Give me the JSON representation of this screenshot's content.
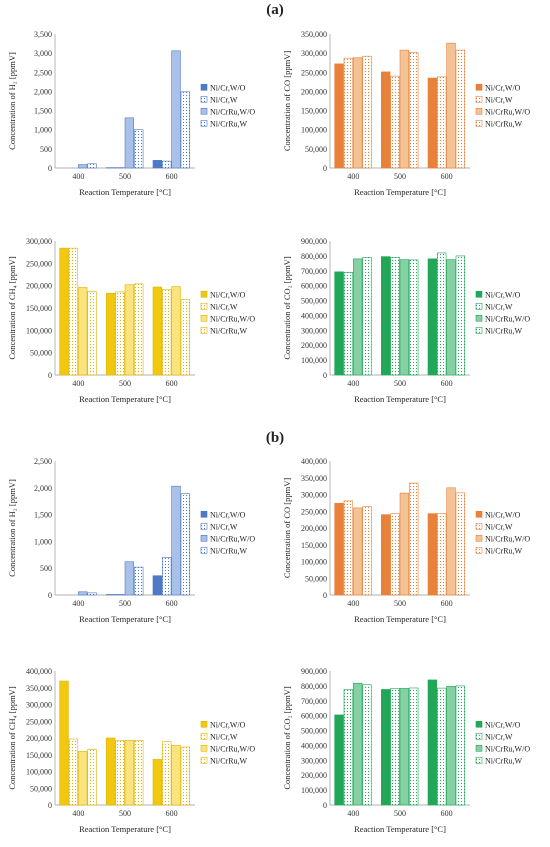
{
  "panels": [
    {
      "label": "(a)"
    },
    {
      "label": "(b)"
    }
  ],
  "charts": [
    {
      "id": "a-h2",
      "panel": "a",
      "type": "bar",
      "x": 5,
      "y": 28,
      "w": 265,
      "h": 180,
      "ylabel": "Concentration of H₂ [ppmV]",
      "xlabel": "Reaction Temperature [°C]",
      "ylim": [
        0,
        3500
      ],
      "yticks": [
        0,
        500,
        1000,
        1500,
        2000,
        2500,
        3000,
        3500
      ],
      "categories": [
        "400",
        "500",
        "600"
      ],
      "palette": "blue",
      "series": [
        {
          "name": "Ni/Cr,W/O",
          "values": [
            0,
            10,
            200
          ]
        },
        {
          "name": "Ni/Cr,W",
          "values": [
            0,
            10,
            180
          ]
        },
        {
          "name": "Ni/CrRu,W/O",
          "values": [
            90,
            1310,
            3060
          ]
        },
        {
          "name": "Ni/CrRu,W",
          "values": [
            110,
            1000,
            1990
          ]
        }
      ]
    },
    {
      "id": "a-co",
      "panel": "a",
      "type": "bar",
      "x": 280,
      "y": 28,
      "w": 265,
      "h": 180,
      "ylabel": "Concentration of CO [ppmV]",
      "xlabel": "Reaction Temperature [°C]",
      "ylim": [
        0,
        350000
      ],
      "yticks": [
        0,
        50000,
        100000,
        150000,
        200000,
        250000,
        300000,
        350000
      ],
      "categories": [
        "400",
        "500",
        "600"
      ],
      "palette": "orange",
      "series": [
        {
          "name": "Ni/Cr,W/O",
          "values": [
            272000,
            251000,
            235000
          ]
        },
        {
          "name": "Ni/Cr,W",
          "values": [
            287000,
            240000,
            238000
          ]
        },
        {
          "name": "Ni/CrRu,W/O",
          "values": [
            288000,
            308000,
            326000
          ]
        },
        {
          "name": "Ni/CrRu,W",
          "values": [
            292000,
            302000,
            308000
          ]
        }
      ]
    },
    {
      "id": "a-ch4",
      "panel": "a",
      "type": "bar",
      "x": 5,
      "y": 235,
      "w": 265,
      "h": 180,
      "ylabel": "Concentration of CH₄ [ppmV]",
      "xlabel": "Reaction Temperature [°C]",
      "ylim": [
        0,
        300000
      ],
      "yticks": [
        0,
        50000,
        100000,
        150000,
        200000,
        250000,
        300000
      ],
      "categories": [
        "400",
        "500",
        "600"
      ],
      "palette": "yellow",
      "series": [
        {
          "name": "Ni/Cr,W/O",
          "values": [
            284000,
            183000,
            197000
          ]
        },
        {
          "name": "Ni/Cr,W",
          "values": [
            284000,
            186000,
            191000
          ]
        },
        {
          "name": "Ni/CrRu,W/O",
          "values": [
            196000,
            202000,
            198000
          ]
        },
        {
          "name": "Ni/CrRu,W",
          "values": [
            187000,
            204000,
            169000
          ]
        }
      ]
    },
    {
      "id": "a-co2",
      "panel": "a",
      "type": "bar",
      "x": 280,
      "y": 235,
      "w": 265,
      "h": 180,
      "ylabel": "Concentration of CO₂ [ppmV]",
      "xlabel": "Reaction Temperature [°C]",
      "ylim": [
        0,
        900000
      ],
      "yticks": [
        0,
        100000,
        200000,
        300000,
        400000,
        500000,
        600000,
        700000,
        800000,
        900000
      ],
      "categories": [
        "400",
        "500",
        "600"
      ],
      "palette": "green",
      "series": [
        {
          "name": "Ni/Cr,W/O",
          "values": [
            693000,
            795000,
            780000
          ]
        },
        {
          "name": "Ni/Cr,W",
          "values": [
            690000,
            790000,
            820000
          ]
        },
        {
          "name": "Ni/CrRu,W/O",
          "values": [
            780000,
            775000,
            775000
          ]
        },
        {
          "name": "Ni/CrRu,W",
          "values": [
            790000,
            773000,
            800000
          ]
        }
      ]
    },
    {
      "id": "b-h2",
      "panel": "b",
      "type": "bar",
      "x": 5,
      "y": 455,
      "w": 265,
      "h": 180,
      "ylabel": "Concentration of H₂ [ppmV]",
      "xlabel": "Reaction Temperature [°C]",
      "ylim": [
        0,
        2500
      ],
      "yticks": [
        0,
        500,
        1000,
        1500,
        2000,
        2500
      ],
      "categories": [
        "400",
        "500",
        "600"
      ],
      "palette": "blue",
      "series": [
        {
          "name": "Ni/Cr,W/O",
          "values": [
            0,
            10,
            360
          ]
        },
        {
          "name": "Ni/Cr,W",
          "values": [
            0,
            10,
            700
          ]
        },
        {
          "name": "Ni/CrRu,W/O",
          "values": [
            60,
            620,
            2030
          ]
        },
        {
          "name": "Ni/CrRu,W",
          "values": [
            40,
            520,
            1890
          ]
        }
      ]
    },
    {
      "id": "b-co",
      "panel": "b",
      "type": "bar",
      "x": 280,
      "y": 455,
      "w": 265,
      "h": 180,
      "ylabel": "Concentration of CO [ppmV]",
      "xlabel": "Reaction Temperature [°C]",
      "ylim": [
        0,
        400000
      ],
      "yticks": [
        0,
        50000,
        100000,
        150000,
        200000,
        250000,
        300000,
        350000,
        400000
      ],
      "categories": [
        "400",
        "500",
        "600"
      ],
      "palette": "orange",
      "series": [
        {
          "name": "Ni/Cr,W/O",
          "values": [
            274000,
            240000,
            243000
          ]
        },
        {
          "name": "Ni/Cr,W",
          "values": [
            281000,
            243000,
            243000
          ]
        },
        {
          "name": "Ni/CrRu,W/O",
          "values": [
            260000,
            304000,
            320000
          ]
        },
        {
          "name": "Ni/CrRu,W",
          "values": [
            264000,
            334000,
            305000
          ]
        }
      ]
    },
    {
      "id": "b-ch4",
      "panel": "b",
      "type": "bar",
      "x": 5,
      "y": 665,
      "w": 265,
      "h": 180,
      "ylabel": "Concentration of CH₄ [ppmV]",
      "xlabel": "Reaction Temperature [°C]",
      "ylim": [
        0,
        400000
      ],
      "yticks": [
        0,
        50000,
        100000,
        150000,
        200000,
        250000,
        300000,
        350000,
        400000
      ],
      "categories": [
        "400",
        "500",
        "600"
      ],
      "palette": "yellow",
      "series": [
        {
          "name": "Ni/Cr,W/O",
          "values": [
            370000,
            200000,
            136000
          ]
        },
        {
          "name": "Ni/Cr,W",
          "values": [
            197000,
            192000,
            189000
          ]
        },
        {
          "name": "Ni/CrRu,W/O",
          "values": [
            160000,
            193000,
            178000
          ]
        },
        {
          "name": "Ni/CrRu,W",
          "values": [
            166000,
            193000,
            173000
          ]
        }
      ]
    },
    {
      "id": "b-co2",
      "panel": "b",
      "type": "bar",
      "x": 280,
      "y": 665,
      "w": 265,
      "h": 180,
      "ylabel": "Concentration of CO₂ [ppmV]",
      "xlabel": "Reaction Temperature [°C]",
      "ylim": [
        0,
        900000
      ],
      "yticks": [
        0,
        100000,
        200000,
        300000,
        400000,
        500000,
        600000,
        700000,
        800000,
        900000
      ],
      "categories": [
        "400",
        "500",
        "600"
      ],
      "palette": "green",
      "series": [
        {
          "name": "Ni/Cr,W/O",
          "values": [
            605000,
            776000,
            840000
          ]
        },
        {
          "name": "Ni/Cr,W",
          "values": [
            776000,
            783000,
            785000
          ]
        },
        {
          "name": "Ni/CrRu,W/O",
          "values": [
            818000,
            783000,
            797000
          ]
        },
        {
          "name": "Ni/CrRu,W",
          "values": [
            808000,
            786000,
            800000
          ]
        }
      ]
    }
  ],
  "palettes": {
    "blue": {
      "solid": [
        "#4e79c5",
        "#ffffff",
        "#a9c1e8",
        "#ffffff"
      ],
      "stroke": [
        "#4e79c5",
        "#4e79c5",
        "#4e79c5",
        "#4e79c5"
      ]
    },
    "orange": {
      "solid": [
        "#e8813a",
        "#ffffff",
        "#f3c396",
        "#ffffff"
      ],
      "stroke": [
        "#e8813a",
        "#e8813a",
        "#e8813a",
        "#e8813a"
      ]
    },
    "yellow": {
      "solid": [
        "#f2c80f",
        "#ffffff",
        "#fbe37d",
        "#ffffff"
      ],
      "stroke": [
        "#e0b400",
        "#e0b400",
        "#e0b400",
        "#e0b400"
      ]
    },
    "green": {
      "solid": [
        "#22a658",
        "#ffffff",
        "#86d1a3",
        "#ffffff"
      ],
      "stroke": [
        "#22a658",
        "#22a658",
        "#22a658",
        "#22a658"
      ]
    }
  }
}
